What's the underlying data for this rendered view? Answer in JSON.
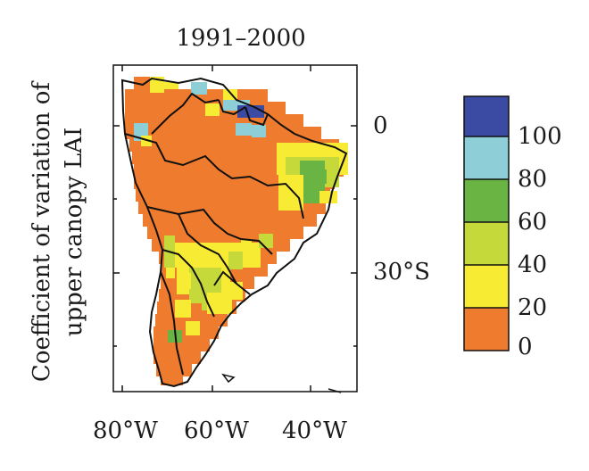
{
  "title": "1991–2000",
  "colorbar_label": "Coefficient of variation of upper canopy LAI",
  "colorbar": {
    "ticks": [
      "100",
      "80",
      "60",
      "40",
      "20",
      "0"
    ],
    "bins": [
      {
        "range": [
          0,
          20
        ],
        "color": "#ef7b2e"
      },
      {
        "range": [
          20,
          40
        ],
        "color": "#f7ec33"
      },
      {
        "range": [
          40,
          60
        ],
        "color": "#c5d93a"
      },
      {
        "range": [
          60,
          80
        ],
        "color": "#69b443"
      },
      {
        "range": [
          80,
          100
        ],
        "color": "#8ecfd7"
      },
      {
        "range": [
          100,
          120
        ],
        "color": "#3b4aa3"
      }
    ]
  },
  "axes": {
    "lon_ticks": [
      "80°W",
      "60°W",
      "40°W"
    ],
    "lat_ticks": [
      "0",
      "30°S"
    ]
  }
}
